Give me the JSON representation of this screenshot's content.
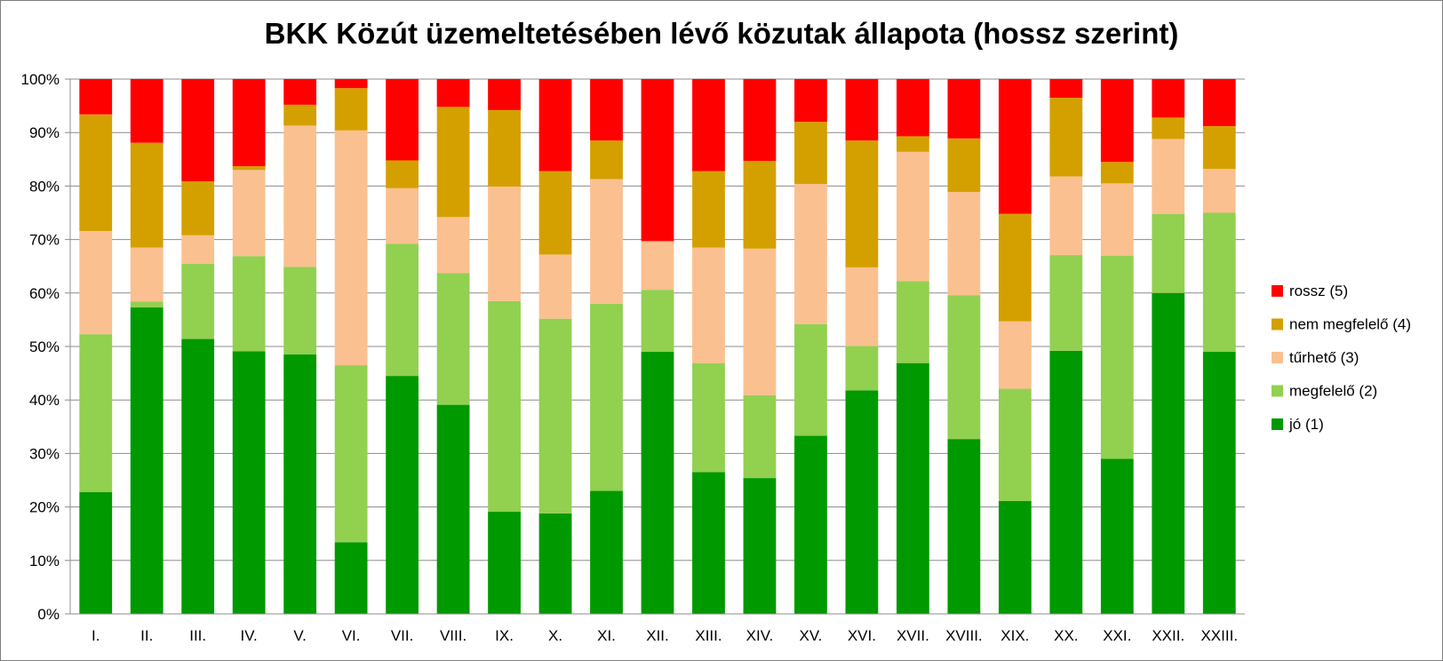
{
  "chart_data": {
    "type": "bar",
    "stacked": true,
    "title": "BKK Közút üzemeltetésében lévő közutak állapota (hossz szerint)",
    "xlabel": "",
    "ylabel": "",
    "ylim": [
      0,
      100
    ],
    "y_ticks": [
      "0%",
      "10%",
      "20%",
      "30%",
      "40%",
      "50%",
      "60%",
      "70%",
      "80%",
      "90%",
      "100%"
    ],
    "grid": true,
    "legend_position": "right",
    "categories": [
      "I.",
      "II.",
      "III.",
      "IV.",
      "V.",
      "VI.",
      "VII.",
      "VIII.",
      "IX.",
      "X.",
      "XI.",
      "XII.",
      "XIII.",
      "XIV.",
      "XV.",
      "XVI.",
      "XVII.",
      "XVIII.",
      "XIX.",
      "XX.",
      "XXI.",
      "XXII.",
      "XXIII."
    ],
    "series": [
      {
        "name": "jó (1)",
        "color": "#009900",
        "values": [
          22.8,
          57.3,
          51.4,
          49.1,
          48.5,
          13.4,
          44.5,
          39.1,
          19.1,
          18.8,
          23.0,
          49.0,
          26.5,
          25.4,
          33.3,
          41.8,
          46.9,
          32.7,
          21.1,
          49.2,
          29.0,
          60.0,
          49.0
        ]
      },
      {
        "name": "megfelelő (2)",
        "color": "#92d050",
        "values": [
          29.5,
          1.1,
          14.1,
          17.8,
          16.4,
          33.1,
          24.7,
          24.6,
          39.4,
          36.4,
          35.0,
          11.6,
          20.4,
          15.5,
          20.9,
          8.3,
          15.3,
          26.9,
          21.0,
          17.9,
          38.0,
          14.8,
          26.0
        ]
      },
      {
        "name": "tűrhető (3)",
        "color": "#fac090",
        "values": [
          19.3,
          10.1,
          5.3,
          16.1,
          26.4,
          43.9,
          10.4,
          10.5,
          21.4,
          12.0,
          23.3,
          9.1,
          21.6,
          27.4,
          26.2,
          14.7,
          24.2,
          19.3,
          12.6,
          14.7,
          13.5,
          14.0,
          8.2
        ]
      },
      {
        "name": "nem megfelelő (4)",
        "color": "#d4a000",
        "values": [
          21.8,
          19.6,
          10.1,
          0.7,
          3.9,
          7.9,
          5.2,
          20.6,
          14.3,
          15.6,
          7.2,
          0.0,
          14.3,
          16.4,
          11.6,
          23.7,
          2.9,
          10.0,
          20.1,
          14.7,
          4.0,
          4.0,
          8.0
        ]
      },
      {
        "name": "rossz (5)",
        "color": "#ff0000",
        "values": [
          6.6,
          11.9,
          19.1,
          16.3,
          4.8,
          1.7,
          15.2,
          5.2,
          5.8,
          17.2,
          11.5,
          30.3,
          17.2,
          15.3,
          8.0,
          11.5,
          10.7,
          11.1,
          25.2,
          3.5,
          15.5,
          7.2,
          8.8
        ]
      }
    ]
  }
}
